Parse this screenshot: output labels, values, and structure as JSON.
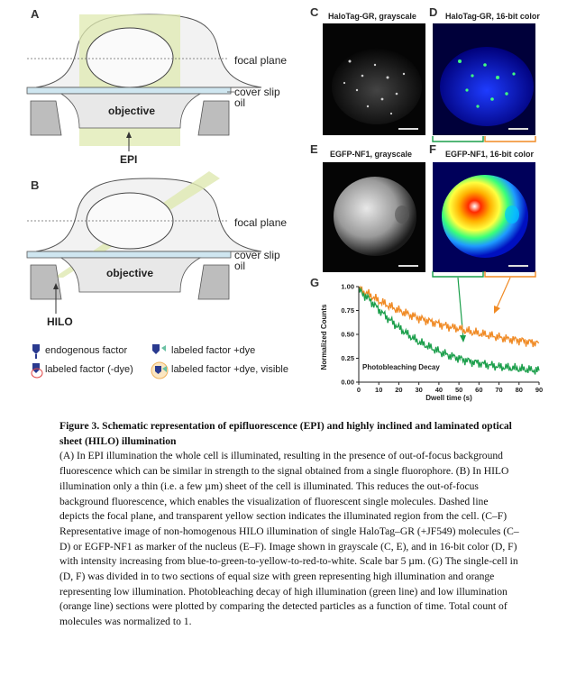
{
  "panels": {
    "A": "A",
    "B": "B",
    "C": "C",
    "D": "D",
    "E": "E",
    "F": "F",
    "G": "G"
  },
  "schematic": {
    "focal_plane": "focal plane",
    "cover_slip": "cover slip",
    "oil": "oil",
    "objective": "objective",
    "epi": "EPI",
    "hilo": "HILO"
  },
  "legend": {
    "endogenous": "endogenous factor",
    "labeled_dye": "labeled factor +dye",
    "labeled_nodye": "labeled factor (-dye)",
    "labeled_visible": "labeled factor +dye, visible"
  },
  "micrographs": {
    "c_title": "HaloTag-GR, grayscale",
    "d_title": "HaloTag-GR, 16-bit color",
    "e_title": "EGFP-NF1, grayscale",
    "f_title": "EGFP-NF1, 16-bit color"
  },
  "chart_data": {
    "type": "line",
    "title": "Photobleaching Decay",
    "xlabel": "Dwell time (s)",
    "ylabel": "Normalized Counts",
    "xlim": [
      0,
      90
    ],
    "ylim": [
      0,
      1.0
    ],
    "xticks": [
      "0",
      "10",
      "20",
      "30",
      "40",
      "50",
      "60",
      "70",
      "80",
      "90"
    ],
    "yticks": [
      "0.00",
      "0.25",
      "0.50",
      "0.75",
      "1.00"
    ],
    "series": [
      {
        "color": "#f08a24",
        "x": [
          0,
          5,
          10,
          15,
          20,
          25,
          30,
          35,
          40,
          45,
          50,
          55,
          60,
          65,
          70,
          75,
          80,
          85,
          90
        ],
        "y": [
          0.97,
          0.92,
          0.85,
          0.8,
          0.75,
          0.71,
          0.67,
          0.64,
          0.61,
          0.58,
          0.56,
          0.53,
          0.51,
          0.49,
          0.47,
          0.45,
          0.44,
          0.42,
          0.41
        ]
      },
      {
        "color": "#1a9e4a",
        "x": [
          0,
          5,
          10,
          15,
          20,
          25,
          30,
          35,
          40,
          45,
          50,
          55,
          60,
          65,
          70,
          75,
          80,
          85,
          90
        ],
        "y": [
          0.96,
          0.87,
          0.76,
          0.66,
          0.57,
          0.49,
          0.42,
          0.37,
          0.32,
          0.28,
          0.25,
          0.22,
          0.2,
          0.18,
          0.16,
          0.15,
          0.14,
          0.13,
          0.12
        ]
      }
    ],
    "colors": {
      "high_illumination": "#1a9e4a",
      "low_illumination": "#f08a24"
    }
  },
  "caption": {
    "title": "Figure 3. Schematic representation of epifluorescence (EPI) and highly inclined and laminated optical sheet (HILO) illumination",
    "body": "(A) In EPI illumination the whole cell is illuminated, resulting in the presence of out-of-focus background fluorescence which can be similar in strength to the signal obtained from a single fluorophore. (B) In HILO illumination only a thin (i.e. a few µm) sheet of the cell is illuminated. This reduces the out-of-focus background fluorescence, which enables the visualization of fluorescent single molecules. Dashed line depicts the focal plane, and transparent yellow section indicates the illuminated region from the cell. (C–F) Representative image of non-homogenous HILO illumination of single HaloTag–GR (+JF549) molecules (C–D) or EGFP-NF1 as marker of the nucleus (E–F). Image shown in grayscale (C, E), and in 16-bit color (D, F) with intensity increasing from blue-to-green-to-yellow-to-red-to-white. Scale bar 5 µm. (G) The single-cell in (D, F) was divided in to two sections of equal size with green representing high illumination and orange representing low illumination. Photobleaching decay of high illumination (green line) and low illumination (orange line) sections were plotted by comparing the detected particles as a function of time. Total count of molecules was normalized to 1."
  }
}
